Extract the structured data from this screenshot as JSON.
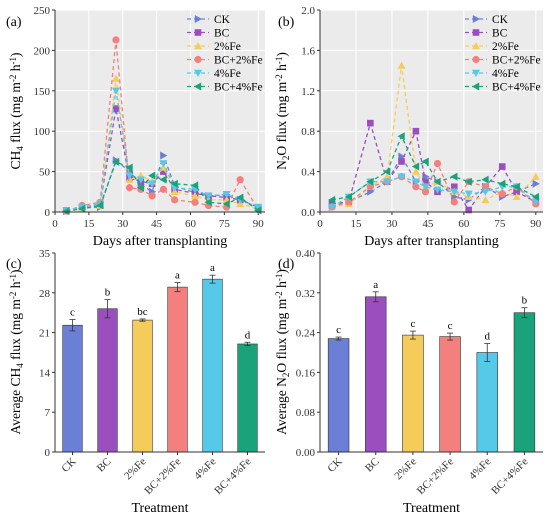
{
  "series_styles": [
    {
      "name": "CK",
      "color": "#6b7fd6",
      "marker": "triangle-right"
    },
    {
      "name": "BC",
      "color": "#9b4fbf",
      "marker": "square"
    },
    {
      "name": "2%Fe",
      "color": "#f5cc5a",
      "marker": "triangle-up"
    },
    {
      "name": "BC+2%Fe",
      "color": "#f47f7f",
      "marker": "circle"
    },
    {
      "name": "4%Fe",
      "color": "#56c8e8",
      "marker": "triangle-down"
    },
    {
      "name": "BC+4%Fe",
      "color": "#1aa37a",
      "marker": "triangle-left"
    }
  ],
  "chart_data": [
    {
      "panel_label": "(a)",
      "type": "line",
      "xlabel": "Days after transplanting",
      "ylabel_parts": [
        "CH",
        "4",
        " flux (mg m",
        "-2",
        " h",
        "-1",
        ")"
      ],
      "xlim": [
        0,
        93
      ],
      "ylim": [
        0,
        250
      ],
      "xticks": [
        0,
        15,
        30,
        45,
        60,
        75,
        90
      ],
      "yticks": [
        0,
        50,
        100,
        150,
        200,
        250
      ],
      "legend": "top-right",
      "x": [
        5,
        12,
        20,
        27,
        33,
        38,
        43,
        48,
        53,
        62,
        68,
        76,
        82,
        90
      ],
      "series": [
        {
          "name": "CK",
          "values": [
            1,
            5,
            6,
            64,
            50,
            34,
            25,
            70,
            32,
            24,
            20,
            21,
            15,
            5
          ]
        },
        {
          "name": "BC",
          "values": [
            2,
            6,
            10,
            128,
            42,
            38,
            35,
            50,
            28,
            23,
            20,
            18,
            15,
            6
          ]
        },
        {
          "name": "2%Fe",
          "values": [
            2,
            4,
            8,
            165,
            40,
            45,
            38,
            55,
            25,
            20,
            15,
            15,
            10,
            4
          ]
        },
        {
          "name": "BC+2%Fe",
          "values": [
            1,
            8,
            12,
            213,
            30,
            28,
            20,
            28,
            15,
            12,
            8,
            6,
            40,
            3
          ]
        },
        {
          "name": "4%Fe",
          "values": [
            2,
            6,
            10,
            150,
            45,
            40,
            35,
            60,
            30,
            28,
            20,
            22,
            15,
            6
          ]
        },
        {
          "name": "BC+4%Fe",
          "values": [
            1,
            4,
            8,
            62,
            55,
            30,
            45,
            40,
            35,
            33,
            12,
            10,
            18,
            2
          ]
        }
      ]
    },
    {
      "panel_label": "(b)",
      "type": "line",
      "xlabel": "Days after transplanting",
      "ylabel_parts": [
        "N",
        "2",
        "O flux (mg m",
        "-2",
        " h",
        "-1",
        ")"
      ],
      "xlim": [
        0,
        93
      ],
      "ylim": [
        0,
        2.0
      ],
      "xticks": [
        0,
        15,
        30,
        45,
        60,
        75,
        90
      ],
      "yticks": [
        0.0,
        0.4,
        0.8,
        1.2,
        1.6,
        2.0
      ],
      "ytick_labels": [
        "0.0",
        "0.4",
        "0.8",
        "1.2",
        "1.6",
        "2.0"
      ],
      "legend": "top-right",
      "x": [
        5,
        12,
        21,
        28,
        34,
        40,
        44,
        49,
        56,
        62,
        69,
        76,
        82,
        90
      ],
      "series": [
        {
          "name": "CK",
          "values": [
            0.05,
            0.1,
            0.2,
            0.3,
            0.55,
            0.3,
            0.35,
            0.3,
            0.15,
            0.12,
            0.25,
            0.15,
            0.2,
            0.28
          ]
        },
        {
          "name": "BC",
          "values": [
            0.08,
            0.1,
            0.88,
            0.3,
            0.5,
            0.8,
            0.3,
            0.2,
            0.25,
            0.02,
            0.25,
            0.45,
            0.2,
            0.1
          ]
        },
        {
          "name": "2%Fe",
          "values": [
            0.05,
            0.08,
            0.25,
            0.35,
            1.45,
            0.4,
            0.25,
            0.3,
            0.2,
            0.15,
            0.12,
            0.2,
            0.15,
            0.35
          ]
        },
        {
          "name": "BC+2%Fe",
          "values": [
            0.05,
            0.1,
            0.25,
            0.3,
            0.35,
            0.25,
            0.2,
            0.48,
            0.1,
            0.3,
            0.25,
            0.18,
            0.25,
            0.08
          ]
        },
        {
          "name": "4%Fe",
          "values": [
            0.05,
            0.15,
            0.3,
            0.3,
            0.35,
            0.3,
            0.25,
            0.22,
            0.2,
            0.18,
            0.2,
            0.25,
            0.25,
            0.1
          ]
        },
        {
          "name": "BC+4%Fe",
          "values": [
            0.12,
            0.15,
            0.3,
            0.4,
            0.75,
            0.45,
            0.5,
            0.3,
            0.35,
            0.3,
            0.32,
            0.28,
            0.25,
            0.15
          ]
        }
      ]
    },
    {
      "panel_label": "(c)",
      "type": "bar",
      "xlabel": "Treatment",
      "ylabel_parts": [
        "Average CH",
        "4",
        " flux (mg m",
        "-2",
        " h",
        "-1",
        ")"
      ],
      "ylim": [
        0,
        35
      ],
      "yticks": [
        0,
        7,
        14,
        21,
        28,
        35
      ],
      "categories": [
        "CK",
        "BC",
        "2%Fe",
        "BC+2%Fe",
        "4%Fe",
        "BC+4%Fe"
      ],
      "values": [
        22.3,
        25.2,
        23.2,
        29.0,
        30.4,
        19.0
      ],
      "errors": [
        1.0,
        1.6,
        0.2,
        0.8,
        0.7,
        0.3
      ],
      "letters": [
        "c",
        "b",
        "bc",
        "a",
        "a",
        "d"
      ]
    },
    {
      "panel_label": "(d)",
      "type": "bar",
      "xlabel": "Treatment",
      "ylabel_parts": [
        "Average N",
        "2",
        "O flux (mg m",
        "-2",
        " h",
        "-1",
        ")"
      ],
      "ylim": [
        0,
        0.4
      ],
      "yticks": [
        0,
        0.08,
        0.16,
        0.24,
        0.32,
        0.4
      ],
      "ytick_labels": [
        "0.00",
        "0.08",
        "0.16",
        "0.24",
        "0.32",
        "0.40"
      ],
      "categories": [
        "CK",
        "BC",
        "2%Fe",
        "BC+2%Fe",
        "4%Fe",
        "BC+4%Fe"
      ],
      "values": [
        0.228,
        0.312,
        0.235,
        0.232,
        0.2,
        0.28
      ],
      "errors": [
        0.003,
        0.01,
        0.008,
        0.007,
        0.018,
        0.01
      ],
      "letters": [
        "c",
        "a",
        "c",
        "c",
        "d",
        "b"
      ]
    }
  ]
}
